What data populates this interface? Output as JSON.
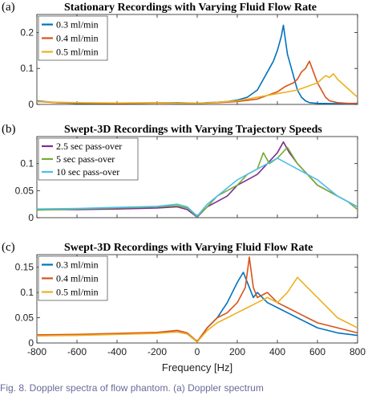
{
  "caption": "Fig. 8.   Doppler spectra of flow phantom. (a) Doppler spectrum",
  "xlabel": "Frequency [Hz]",
  "xticks": [
    "-800",
    "-600",
    "-400",
    "-200",
    "0",
    "200",
    "400",
    "600",
    "800"
  ],
  "chart_data": [
    {
      "type": "line",
      "panel_label": "(a)",
      "title": "Stationary Recordings with Varying Fluid Flow Rate",
      "xlim": [
        -800,
        800
      ],
      "ylim": [
        0,
        0.25
      ],
      "yticks": [
        "0",
        "0.1",
        "0.2"
      ],
      "ytick_values": [
        0,
        0.1,
        0.2
      ],
      "legend_position": "top-left",
      "series": [
        {
          "name": "0.3 ml/min",
          "color": "#0072BD",
          "x": [
            -800,
            -700,
            -600,
            -400,
            -200,
            -100,
            0,
            50,
            100,
            150,
            200,
            250,
            300,
            320,
            340,
            360,
            380,
            400,
            410,
            420,
            430,
            440,
            450,
            460,
            470,
            480,
            500,
            520,
            540,
            560,
            600,
            700,
            800
          ],
          "y": [
            0.01,
            0.005,
            0.003,
            0.003,
            0.004,
            0.005,
            0.003,
            0.005,
            0.006,
            0.008,
            0.012,
            0.02,
            0.04,
            0.06,
            0.08,
            0.1,
            0.12,
            0.15,
            0.17,
            0.19,
            0.22,
            0.18,
            0.14,
            0.12,
            0.1,
            0.08,
            0.04,
            0.02,
            0.01,
            0.005,
            0.003,
            0.002,
            0.002
          ]
        },
        {
          "name": "0.4 ml/min",
          "color": "#D95319",
          "x": [
            -800,
            -700,
            -600,
            -400,
            -200,
            0,
            100,
            200,
            300,
            350,
            400,
            440,
            480,
            500,
            520,
            540,
            560,
            580,
            600,
            620,
            640,
            660,
            700,
            750,
            800
          ],
          "y": [
            0.008,
            0.005,
            0.004,
            0.003,
            0.004,
            0.003,
            0.005,
            0.008,
            0.015,
            0.025,
            0.035,
            0.05,
            0.06,
            0.07,
            0.09,
            0.1,
            0.12,
            0.09,
            0.06,
            0.04,
            0.02,
            0.01,
            0.005,
            0.003,
            0.003
          ]
        },
        {
          "name": "0.5 ml/min",
          "color": "#EDB120",
          "x": [
            -800,
            -700,
            -600,
            -400,
            -200,
            0,
            100,
            200,
            300,
            400,
            500,
            550,
            600,
            620,
            640,
            660,
            680,
            700,
            720,
            740,
            760,
            780,
            800
          ],
          "y": [
            0.008,
            0.006,
            0.005,
            0.004,
            0.005,
            0.003,
            0.006,
            0.01,
            0.02,
            0.03,
            0.04,
            0.05,
            0.06,
            0.07,
            0.08,
            0.075,
            0.085,
            0.07,
            0.06,
            0.05,
            0.04,
            0.03,
            0.02
          ]
        }
      ]
    },
    {
      "type": "line",
      "panel_label": "(b)",
      "title": "Swept-3D Recordings with Varying Trajectory Speeds",
      "xlim": [
        -800,
        800
      ],
      "ylim": [
        0,
        0.15
      ],
      "yticks": [
        "0",
        "0.05",
        "0.1"
      ],
      "ytick_values": [
        0,
        0.05,
        0.1
      ],
      "legend_position": "top-left",
      "series": [
        {
          "name": "2.5 sec pass-over",
          "color": "#7E2F8E",
          "x": [
            -800,
            -600,
            -400,
            -200,
            -100,
            -50,
            0,
            50,
            100,
            150,
            200,
            250,
            300,
            350,
            400,
            430,
            460,
            500,
            550,
            600,
            650,
            700,
            750,
            800
          ],
          "y": [
            0.015,
            0.015,
            0.016,
            0.018,
            0.02,
            0.015,
            0.001,
            0.02,
            0.03,
            0.04,
            0.06,
            0.07,
            0.08,
            0.1,
            0.12,
            0.14,
            0.12,
            0.1,
            0.08,
            0.06,
            0.05,
            0.04,
            0.03,
            0.02
          ]
        },
        {
          "name": "5 sec pass-over",
          "color": "#77AC30",
          "x": [
            -800,
            -600,
            -400,
            -200,
            -100,
            -50,
            0,
            50,
            100,
            150,
            200,
            250,
            300,
            330,
            360,
            400,
            450,
            500,
            550,
            600,
            650,
            700,
            750,
            800
          ],
          "y": [
            0.014,
            0.016,
            0.018,
            0.02,
            0.022,
            0.018,
            0.002,
            0.02,
            0.04,
            0.05,
            0.06,
            0.08,
            0.09,
            0.12,
            0.1,
            0.11,
            0.13,
            0.1,
            0.08,
            0.06,
            0.05,
            0.04,
            0.03,
            0.015
          ]
        },
        {
          "name": "10 sec pass-over",
          "color": "#4DBEEE",
          "x": [
            -800,
            -600,
            -400,
            -200,
            -100,
            -50,
            0,
            50,
            100,
            150,
            200,
            250,
            300,
            350,
            400,
            450,
            500,
            550,
            600,
            650,
            700,
            750,
            800
          ],
          "y": [
            0.016,
            0.017,
            0.019,
            0.021,
            0.025,
            0.02,
            0.003,
            0.025,
            0.04,
            0.055,
            0.07,
            0.08,
            0.09,
            0.1,
            0.11,
            0.1,
            0.09,
            0.08,
            0.07,
            0.055,
            0.04,
            0.03,
            0.02
          ]
        }
      ]
    },
    {
      "type": "line",
      "panel_label": "(c)",
      "title": "Swept-3D Recordings with Varying Fluid Flow Rate",
      "xlim": [
        -800,
        800
      ],
      "ylim": [
        0,
        0.175
      ],
      "yticks": [
        "0",
        "0.05",
        "0.1",
        "0.15"
      ],
      "ytick_values": [
        0,
        0.05,
        0.1,
        0.15
      ],
      "legend_position": "top-left",
      "series": [
        {
          "name": "0.3 ml/min",
          "color": "#0072BD",
          "x": [
            -800,
            -600,
            -400,
            -200,
            -100,
            -50,
            0,
            50,
            100,
            150,
            200,
            230,
            250,
            280,
            300,
            350,
            400,
            450,
            500,
            550,
            600,
            700,
            800
          ],
          "y": [
            0.015,
            0.016,
            0.018,
            0.02,
            0.022,
            0.018,
            0.002,
            0.03,
            0.05,
            0.08,
            0.12,
            0.14,
            0.12,
            0.09,
            0.1,
            0.08,
            0.07,
            0.06,
            0.05,
            0.04,
            0.03,
            0.02,
            0.015
          ]
        },
        {
          "name": "0.4 ml/min",
          "color": "#D95319",
          "x": [
            -800,
            -600,
            -400,
            -200,
            -100,
            -50,
            0,
            50,
            100,
            150,
            200,
            240,
            260,
            280,
            300,
            350,
            400,
            450,
            500,
            550,
            600,
            700,
            800
          ],
          "y": [
            0.016,
            0.017,
            0.019,
            0.021,
            0.025,
            0.02,
            0.003,
            0.03,
            0.05,
            0.06,
            0.08,
            0.11,
            0.17,
            0.11,
            0.09,
            0.1,
            0.08,
            0.07,
            0.06,
            0.05,
            0.04,
            0.03,
            0.02
          ]
        },
        {
          "name": "0.5 ml/min",
          "color": "#EDB120",
          "x": [
            -800,
            -600,
            -400,
            -200,
            -100,
            -50,
            0,
            50,
            100,
            150,
            200,
            250,
            300,
            350,
            400,
            450,
            500,
            550,
            600,
            650,
            700,
            750,
            800
          ],
          "y": [
            0.014,
            0.015,
            0.017,
            0.019,
            0.022,
            0.018,
            0.002,
            0.025,
            0.04,
            0.05,
            0.06,
            0.07,
            0.08,
            0.09,
            0.08,
            0.1,
            0.13,
            0.11,
            0.09,
            0.07,
            0.05,
            0.04,
            0.03
          ]
        }
      ]
    }
  ]
}
